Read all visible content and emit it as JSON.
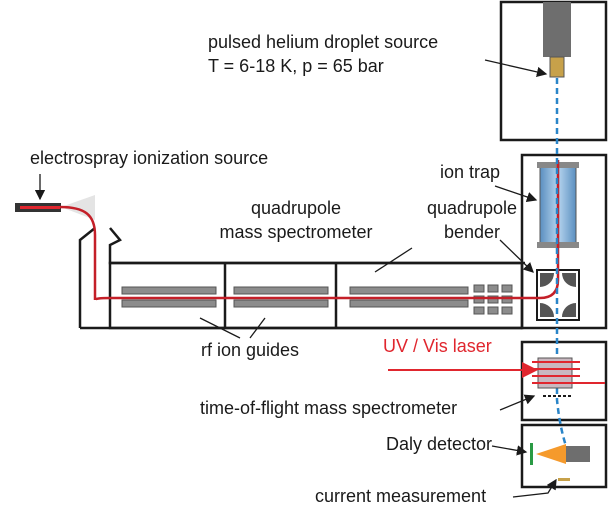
{
  "labels": {
    "source": "pulsed helium droplet source",
    "source_conditions": "T = 6-18 K, p = 65 bar",
    "esi": "electrospray ionization source",
    "ion_trap": "ion trap",
    "qms_line1": "quadrupole",
    "qms_line2": "mass spectrometer",
    "bender_line1": "quadrupole",
    "bender_line2": "bender",
    "rf_guides": "rf ion guides",
    "laser": "UV / Vis laser",
    "tof": "time-of-flight mass spectrometer",
    "daly": "Daly detector",
    "current": "current measurement"
  }
}
